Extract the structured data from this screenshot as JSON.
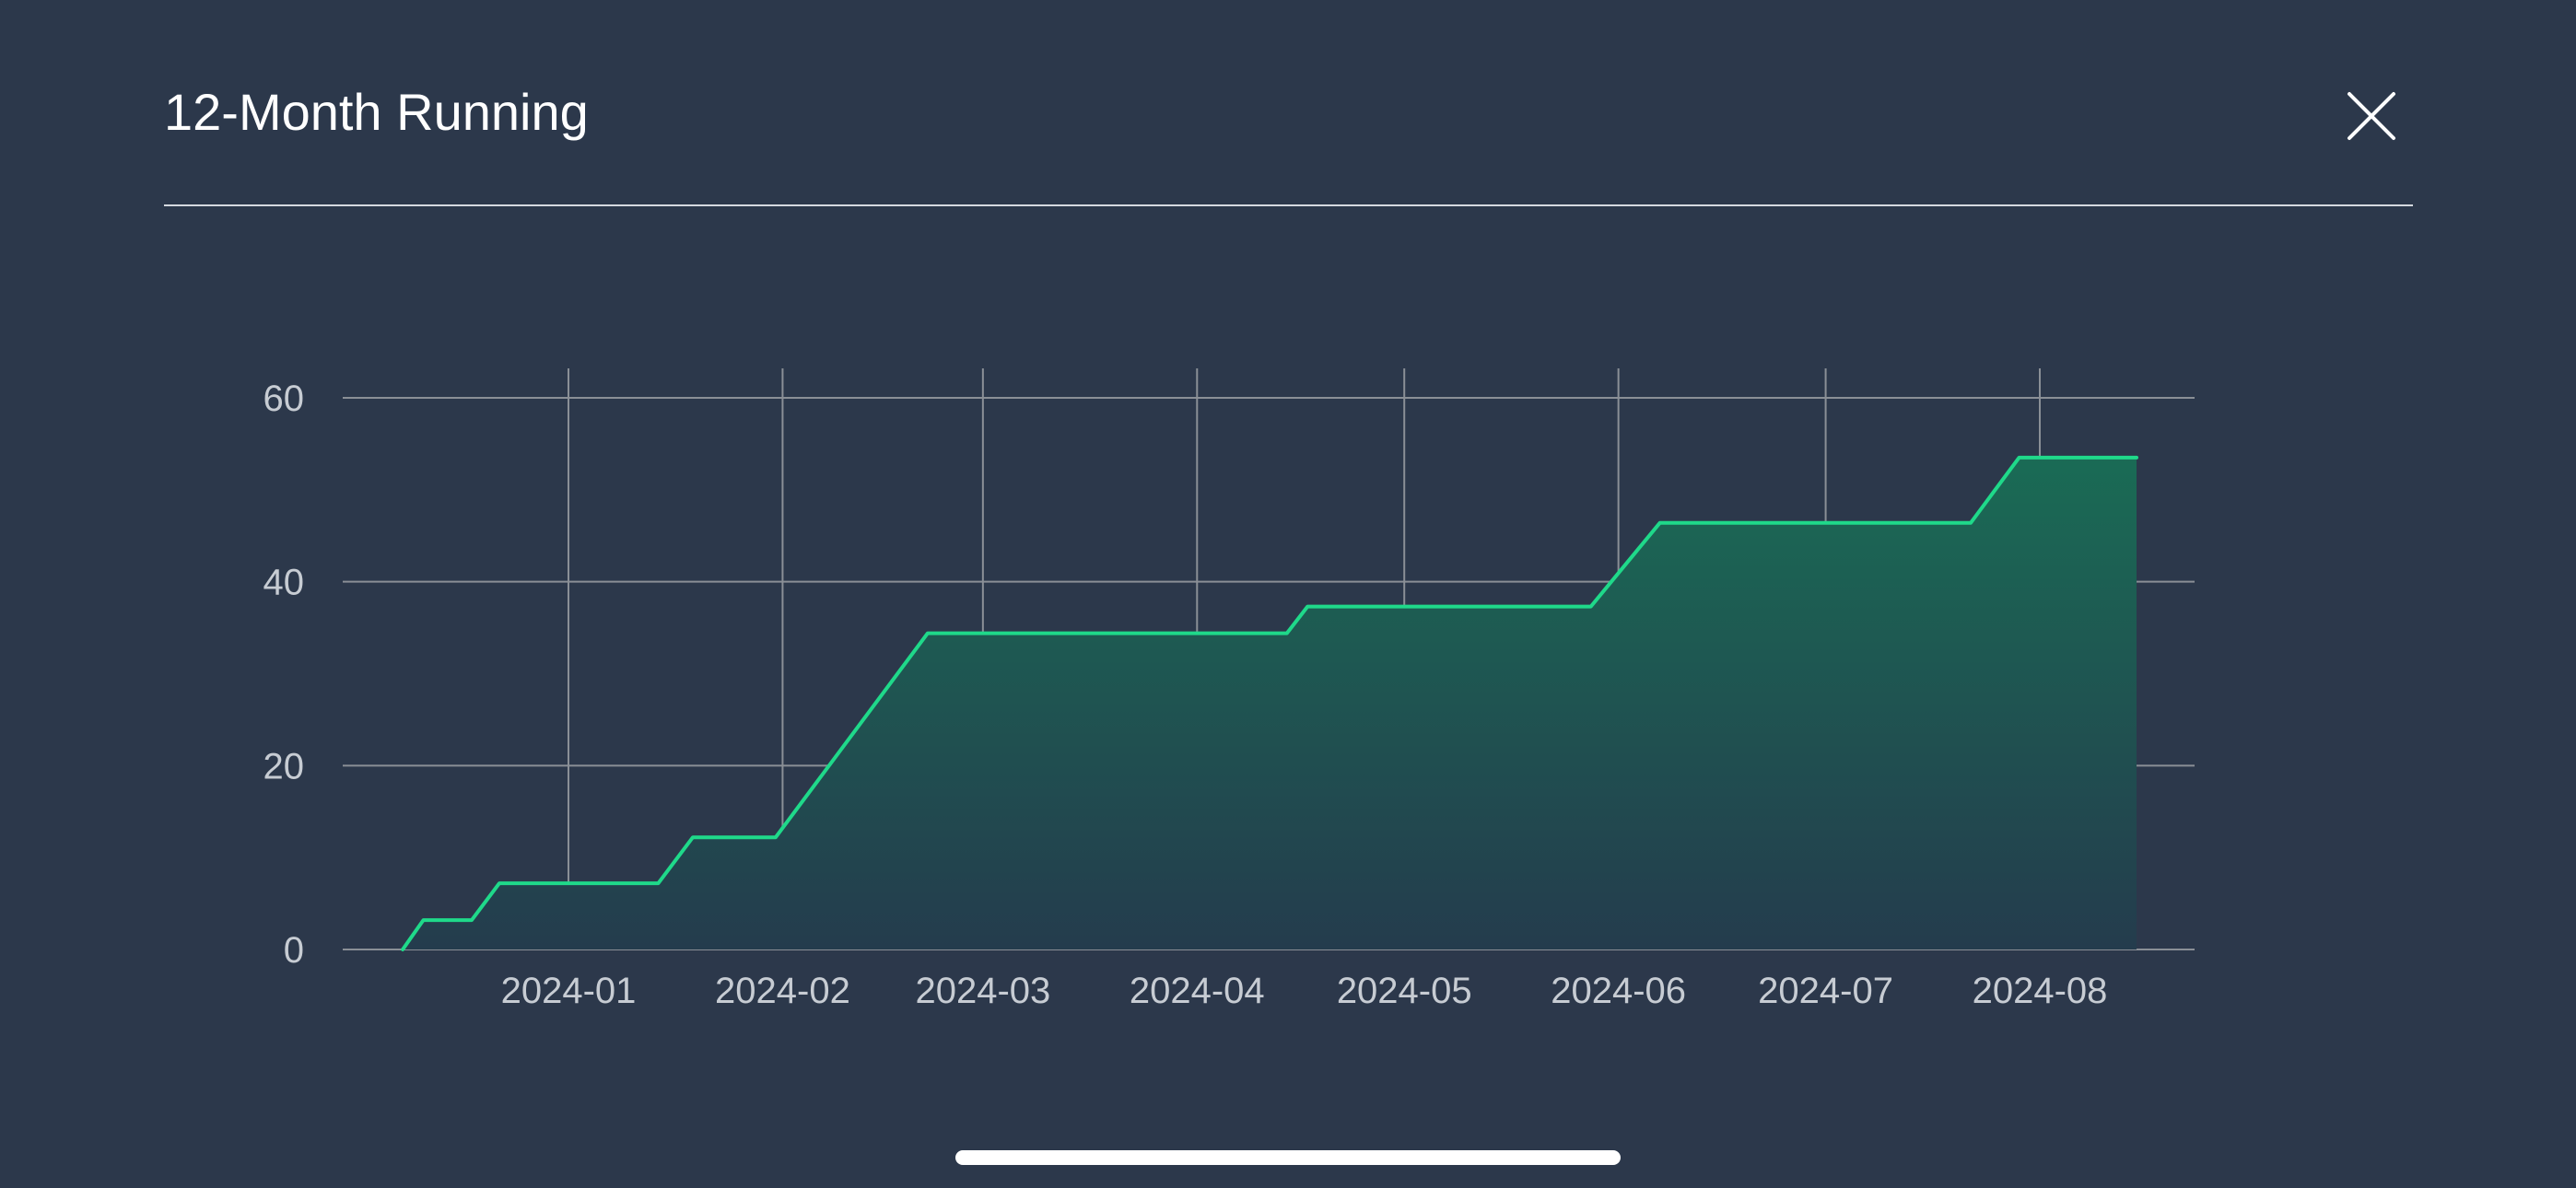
{
  "header": {
    "title": "12-Month Running"
  },
  "icons": {
    "close": "close-icon"
  },
  "colors": {
    "background": "#2c384b",
    "line": "#1fd98a",
    "fill_top": "#1a6b55",
    "fill_bottom": "#243c4d",
    "grid": "#8a8f96",
    "tick_text": "#c7ccd3"
  },
  "chart_data": {
    "type": "area",
    "title": "",
    "xlabel": "",
    "ylabel": "",
    "step": true,
    "grid": true,
    "xlim": [
      "2023-12-06",
      "2024-08-15"
    ],
    "ylim": [
      0,
      60
    ],
    "yticks": [
      0,
      20,
      40,
      60
    ],
    "xticks": [
      "2024-01",
      "2024-02",
      "2024-03",
      "2024-04",
      "2024-05",
      "2024-06",
      "2024-07",
      "2024-08"
    ],
    "series": [
      {
        "x": [
          "2023-12-08",
          "2023-12-11",
          "2023-12-18",
          "2023-12-22",
          "2024-01-14",
          "2024-01-19",
          "2024-01-31",
          "2024-02-22",
          "2024-04-14",
          "2024-04-17",
          "2024-05-28",
          "2024-06-07",
          "2024-07-22",
          "2024-07-29",
          "2024-08-15"
        ],
        "y": [
          0,
          3.2,
          3.2,
          7.2,
          7.2,
          12.2,
          12.2,
          34.4,
          34.4,
          37.3,
          37.3,
          46.4,
          46.4,
          53.5,
          53.5
        ]
      }
    ]
  }
}
